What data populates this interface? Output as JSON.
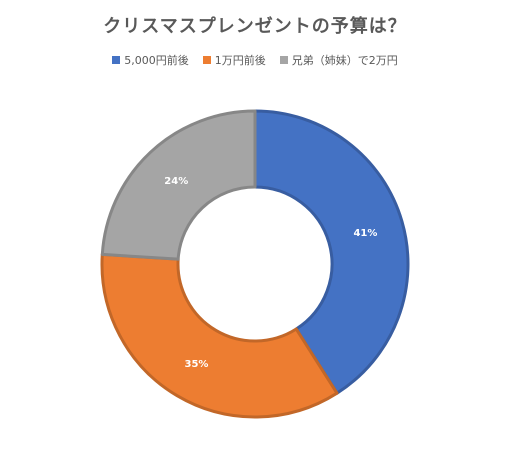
{
  "chart_data": {
    "type": "pie",
    "donut": true,
    "title": "クリスマスプレンゼントの予算は？",
    "legend_position": "top",
    "series": [
      {
        "name": "5,000円前後",
        "value": 41,
        "label": "41%",
        "color": "#4472C4"
      },
      {
        "name": "1万円前後",
        "value": 35,
        "label": "35%",
        "color": "#ED7D31"
      },
      {
        "name": "兄弟（姉妹）で2万円",
        "value": 24,
        "label": "24%",
        "color": "#A5A5A5"
      }
    ]
  }
}
